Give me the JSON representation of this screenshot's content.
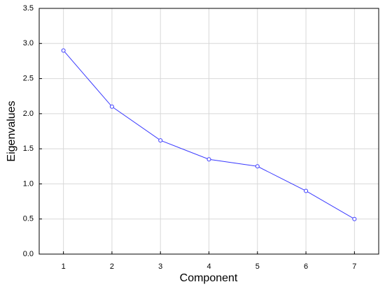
{
  "chart_data": {
    "type": "line",
    "x_label": "Component",
    "y_label": "Eigenvalues",
    "x": [
      1,
      2,
      3,
      4,
      5,
      6,
      7
    ],
    "series": [
      {
        "color": "#3a3aff",
        "values": [
          2.9,
          2.1,
          1.62,
          1.35,
          1.25,
          0.9,
          0.5
        ]
      }
    ],
    "xlim": [
      0.5,
      7.5
    ],
    "xticks": [
      1,
      2,
      3,
      4,
      5,
      6,
      7
    ],
    "ylim": [
      0,
      3.5
    ],
    "yticks": [
      {
        "value": 0,
        "label": "0.0"
      },
      0.5,
      {
        "value": 1,
        "label": "1.0"
      },
      1.5,
      {
        "value": 2,
        "label": "2.0"
      },
      2.5,
      {
        "value": 3,
        "label": "3.0"
      },
      3.5
    ],
    "grid": true
  }
}
